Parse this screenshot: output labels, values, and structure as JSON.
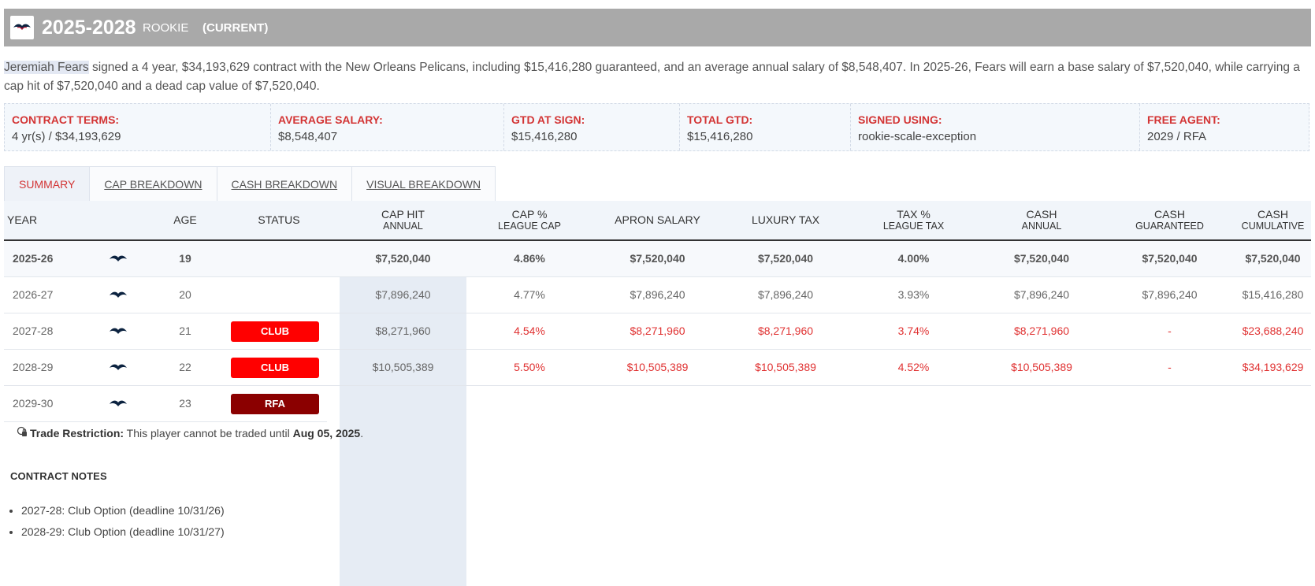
{
  "header": {
    "years": "2025-2028",
    "type": "ROOKIE",
    "status": "(CURRENT)"
  },
  "summary": {
    "player": "Jeremiah Fears",
    "text": " signed a 4 year, $34,193,629 contract with the New Orleans Pelicans, including $15,416,280 guaranteed, and an average annual salary of $8,548,407. In 2025-26, Fears will earn a base salary of $7,520,040, while carrying a cap hit of $7,520,040 and a dead cap value of $7,520,040."
  },
  "terms": [
    {
      "label": "CONTRACT TERMS:",
      "value": "4 yr(s) / $34,193,629"
    },
    {
      "label": "AVERAGE SALARY:",
      "value": "$8,548,407"
    },
    {
      "label": "GTD AT SIGN:",
      "value": "$15,416,280"
    },
    {
      "label": "TOTAL GTD:",
      "value": "$15,416,280"
    },
    {
      "label": "SIGNED USING:",
      "value": "rookie-scale-exception"
    },
    {
      "label": "FREE AGENT:",
      "value": "2029 / RFA"
    }
  ],
  "tabs": [
    "SUMMARY",
    "CAP BREAKDOWN",
    "CASH BREAKDOWN",
    "VISUAL BREAKDOWN"
  ],
  "table": {
    "headers": [
      {
        "main": "YEAR",
        "sub": ""
      },
      {
        "main": "AGE",
        "sub": ""
      },
      {
        "main": "STATUS",
        "sub": ""
      },
      {
        "main": "CAP HIT",
        "sub": "ANNUAL"
      },
      {
        "main": "CAP %",
        "sub": "LEAGUE CAP"
      },
      {
        "main": "APRON SALARY",
        "sub": ""
      },
      {
        "main": "LUXURY TAX",
        "sub": ""
      },
      {
        "main": "TAX %",
        "sub": "LEAGUE TAX"
      },
      {
        "main": "CASH",
        "sub": "ANNUAL"
      },
      {
        "main": "CASH",
        "sub": "GUARANTEED"
      },
      {
        "main": "CASH",
        "sub": "CUMULATIVE"
      }
    ],
    "rows": [
      {
        "year": "2025-26",
        "age": "19",
        "status": "",
        "cap_hit": "$7,520,040",
        "cap_pct": "4.86%",
        "apron": "$7,520,040",
        "lux": "$7,520,040",
        "tax_pct": "4.00%",
        "cash_annual": "$7,520,040",
        "cash_gtd": "$7,520,040",
        "cash_cum": "$7,520,040"
      },
      {
        "year": "2026-27",
        "age": "20",
        "status": "",
        "cap_hit": "$7,896,240",
        "cap_pct": "4.77%",
        "apron": "$7,896,240",
        "lux": "$7,896,240",
        "tax_pct": "3.93%",
        "cash_annual": "$7,896,240",
        "cash_gtd": "$7,896,240",
        "cash_cum": "$15,416,280"
      },
      {
        "year": "2027-28",
        "age": "21",
        "status": "CLUB",
        "cap_hit": "$8,271,960",
        "cap_pct": "4.54%",
        "apron": "$8,271,960",
        "lux": "$8,271,960",
        "tax_pct": "3.74%",
        "cash_annual": "$8,271,960",
        "cash_gtd": "-",
        "cash_cum": "$23,688,240"
      },
      {
        "year": "2028-29",
        "age": "22",
        "status": "CLUB",
        "cap_hit": "$10,505,389",
        "cap_pct": "5.50%",
        "apron": "$10,505,389",
        "lux": "$10,505,389",
        "tax_pct": "4.52%",
        "cash_annual": "$10,505,389",
        "cash_gtd": "-",
        "cash_cum": "$34,193,629"
      },
      {
        "year": "2029-30",
        "age": "23",
        "status": "RFA"
      }
    ]
  },
  "trade": {
    "label": "Trade Restriction:",
    "text": " This player cannot be traded until ",
    "date": "Aug 05, 2025",
    "end": "."
  },
  "notes": {
    "title": "CONTRACT NOTES",
    "items": [
      "2027-28: Club Option (deadline 10/31/26)",
      "2028-29: Club Option (deadline 10/31/27)"
    ]
  },
  "colors": {
    "accent": "#d33535",
    "club": "#ff0000",
    "rfa": "#8b0000",
    "header_bg": "#a9a9a9"
  },
  "icons": {
    "team_logo": "pelicans-logo-icon",
    "trade": "lock-icon"
  }
}
